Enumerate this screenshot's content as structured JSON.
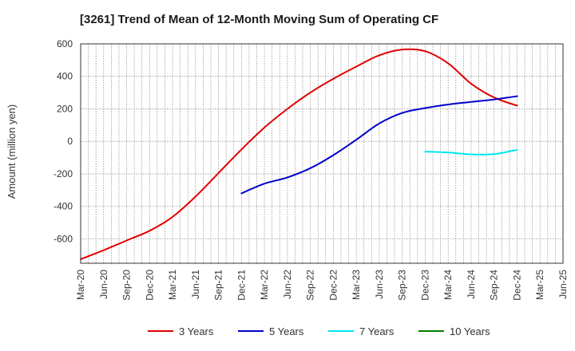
{
  "chart_data": {
    "type": "line",
    "title": "[3261]  Trend of Mean of 12-Month Moving Sum of Operating CF",
    "xlabel": "",
    "ylabel": "Amount (million yen)",
    "ylim": [
      -750,
      600
    ],
    "yticks": [
      600,
      400,
      200,
      0,
      -200,
      -400,
      -600
    ],
    "ytick_labels": [
      "600",
      "400",
      "200",
      "0",
      "-200",
      "-400",
      "-600"
    ],
    "grid": true,
    "legend_position": "bottom",
    "x_categories": [
      "Mar-20",
      "Jun-20",
      "Sep-20",
      "Dec-20",
      "Mar-21",
      "Jun-21",
      "Sep-21",
      "Dec-21",
      "Mar-22",
      "Jun-22",
      "Sep-22",
      "Dec-22",
      "Mar-23",
      "Jun-23",
      "Sep-23",
      "Dec-23",
      "Mar-24",
      "Jun-24",
      "Sep-24",
      "Dec-24",
      "Mar-25",
      "Jun-25"
    ],
    "series": [
      {
        "name": "3 Years",
        "color": "#e00000",
        "values": [
          -725,
          -670,
          -610,
          -550,
          -465,
          -340,
          -195,
          -50,
          85,
          200,
          300,
          385,
          460,
          530,
          565,
          555,
          480,
          355,
          270,
          220,
          null,
          null
        ]
      },
      {
        "name": "5 Years",
        "color": "#0000cc",
        "values": [
          null,
          null,
          null,
          null,
          null,
          null,
          null,
          -320,
          -260,
          -222,
          -165,
          -85,
          10,
          110,
          175,
          205,
          227,
          243,
          258,
          278,
          null,
          null
        ]
      },
      {
        "name": "7 Years",
        "color": "#00e5ee",
        "values": [
          null,
          null,
          null,
          null,
          null,
          null,
          null,
          null,
          null,
          null,
          null,
          null,
          null,
          null,
          null,
          -63,
          -68,
          -80,
          -78,
          -52,
          null,
          null
        ]
      },
      {
        "name": "10 Years",
        "color": "#008000",
        "values": [
          null,
          null,
          null,
          null,
          null,
          null,
          null,
          null,
          null,
          null,
          null,
          null,
          null,
          null,
          null,
          null,
          null,
          null,
          null,
          null,
          null,
          null
        ]
      }
    ]
  }
}
